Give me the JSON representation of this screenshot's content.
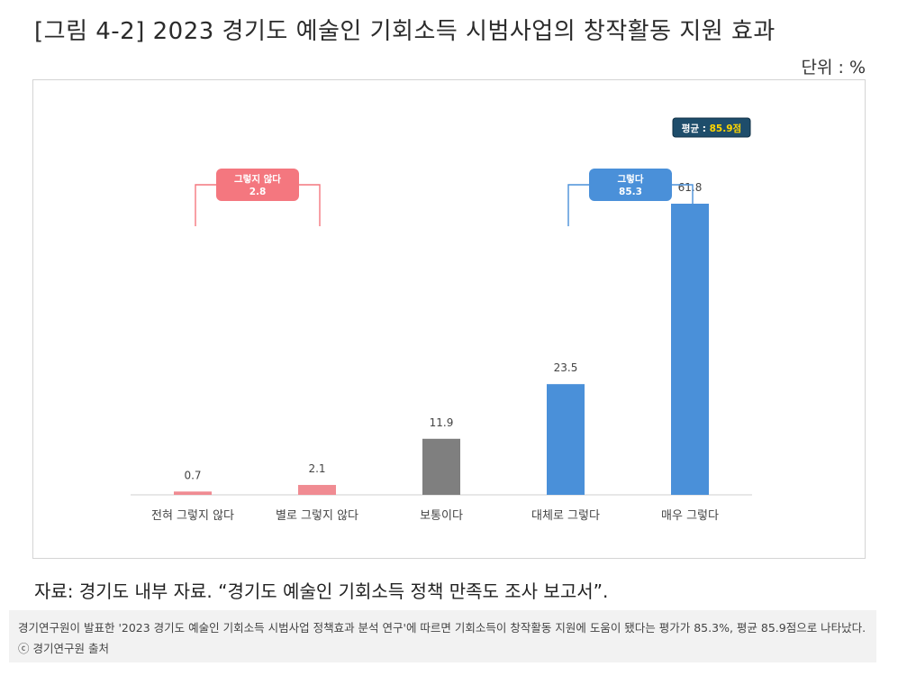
{
  "title": "[그림 4-2] 2023 경기도 예술인 기회소득 시범사업의 창작활동 지원 효과",
  "unit": "단위 : %",
  "chart_data": {
    "type": "bar",
    "categories": [
      "전혀 그렇지 않다",
      "별로 그렇지 않다",
      "보통이다",
      "대체로 그렇다",
      "매우 그렇다"
    ],
    "values": [
      0.7,
      2.1,
      11.9,
      23.5,
      61.8
    ],
    "value_labels": [
      "0.7",
      "2.1",
      "11.9",
      "23.5",
      "61.8"
    ],
    "colors": [
      "#f08b92",
      "#f08b92",
      "#7f7f7f",
      "#4a90d9",
      "#4a90d9"
    ],
    "ylim": [
      0,
      75
    ],
    "grid": false,
    "annotations": {
      "negative": {
        "label": "그렇지 않다",
        "value": "2.8",
        "color": "#f4777f",
        "spans": [
          0,
          1
        ]
      },
      "positive": {
        "label": "그렇다",
        "value": "85.3",
        "color": "#4a90d9",
        "spans": [
          3,
          4
        ]
      },
      "average": {
        "label": "평균 : ",
        "value": "85.9점",
        "bg": "#1e4d6b",
        "value_color": "#ffd600"
      }
    }
  },
  "source": "자료: 경기도 내부 자료. “경기도 예술인 기회소득 정책 만족도 조사 보고서”.",
  "caption": "경기연구원이 발표한 '2023 경기도 예술인 기회소득 시범사업 정책효과 분석 연구'에 따르면 기회소득이 창작활동 지원에 도움이 됐다는 평가가 85.3%, 평균 85.9점으로 나타났다. ⓒ 경기연구원 출처"
}
